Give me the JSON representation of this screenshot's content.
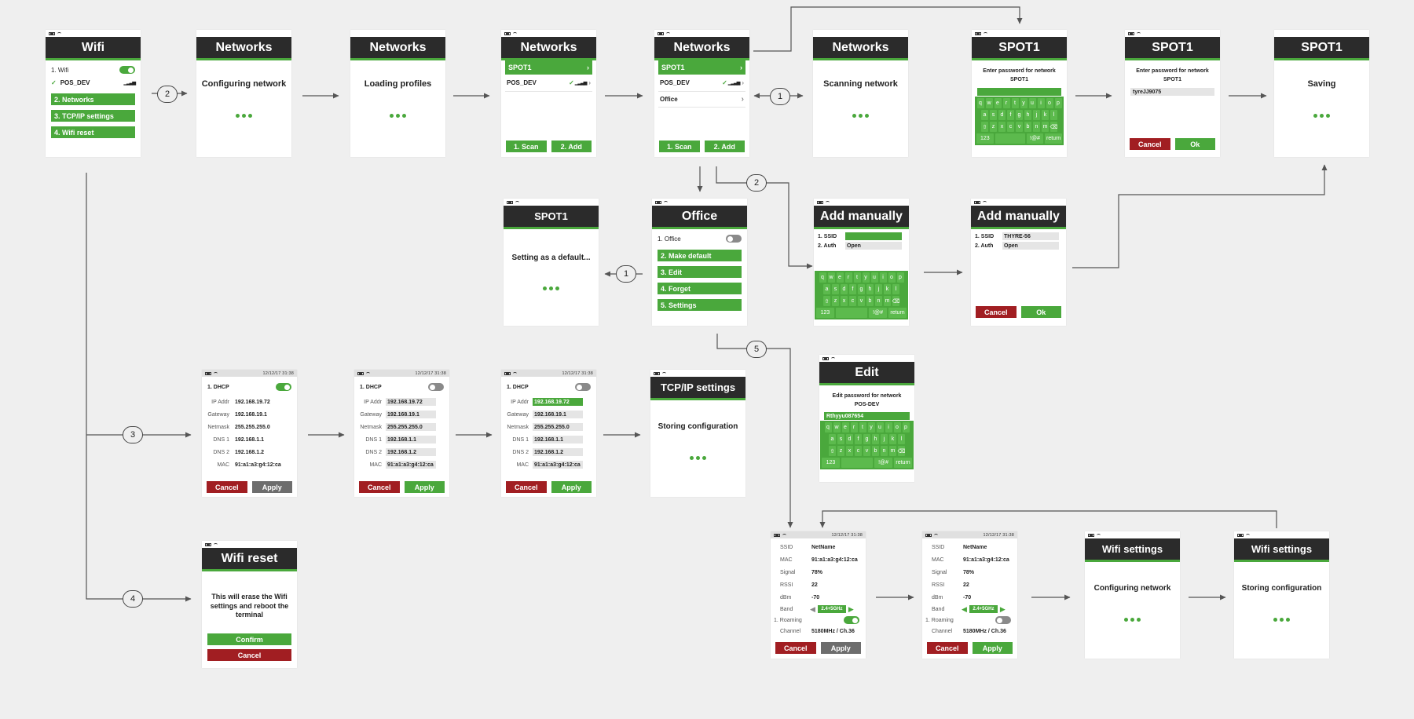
{
  "badges": [
    "2",
    "1",
    "2",
    "1",
    "3",
    "4",
    "5"
  ],
  "wifi": {
    "title": "Wifi",
    "toggle_label": "1. Wifi",
    "network": "POS_DEV",
    "m2": "2. Networks",
    "m3": "3. TCP/IP settings",
    "m4": "4. Wifi reset"
  },
  "configuring": {
    "title": "Networks",
    "text": "Configuring network"
  },
  "loading": {
    "title": "Networks",
    "text": "Loading profiles"
  },
  "networks1": {
    "title": "Networks",
    "n1": "SPOT1",
    "n2": "POS_DEV",
    "scan": "1. Scan",
    "add": "2. Add"
  },
  "networks2": {
    "title": "Networks",
    "n1": "SPOT1",
    "n2": "POS_DEV",
    "n3": "Office",
    "scan": "1. Scan",
    "add": "2. Add"
  },
  "scanning": {
    "title": "Networks",
    "text": "Scanning network"
  },
  "spot_pw": {
    "title": "SPOT1",
    "l1": "Enter password for network",
    "l2": "SPOT1"
  },
  "spot_pw2": {
    "title": "SPOT1",
    "l1": "Enter password for network",
    "l2": "SPOT1",
    "value": "tyreJJ9075",
    "cancel": "Cancel",
    "ok": "Ok"
  },
  "saving": {
    "title": "SPOT1",
    "text": "Saving"
  },
  "spot_default": {
    "title": "SPOT1",
    "text": "Setting as a default..."
  },
  "office": {
    "title": "Office",
    "toggle_label": "1. Office",
    "m2": "2. Make default",
    "m3": "3. Edit",
    "m4": "4. Forget",
    "m5": "5. Settings"
  },
  "addman1": {
    "title": "Add manually",
    "ssid": "1. SSID",
    "auth": "2. Auth",
    "auth_val": "Open"
  },
  "addman2": {
    "title": "Add manually",
    "ssid": "1. SSID",
    "ssid_val": "THYRE-56",
    "auth": "2. Auth",
    "auth_val": "Open",
    "cancel": "Cancel",
    "ok": "Ok"
  },
  "edit": {
    "title": "Edit",
    "l1": "Edit password for network",
    "l2": "POS-DEV",
    "value": "Rthyyu087654"
  },
  "keyboard": {
    "row1": [
      "q",
      "w",
      "e",
      "r",
      "t",
      "y",
      "u",
      "i",
      "o",
      "p"
    ],
    "row2": [
      "a",
      "s",
      "d",
      "f",
      "g",
      "h",
      "j",
      "k",
      "l"
    ],
    "row3": [
      "z",
      "x",
      "c",
      "v",
      "b",
      "n",
      "m"
    ],
    "k123": "123",
    "ksym": "!@#",
    "kret": "return",
    "shift": "⇧",
    "back": "⌫"
  },
  "status": {
    "time": "12/12/17  31:38"
  },
  "dhcp": {
    "toggle_label": "1. DHCP",
    "labels": [
      "IP Addr",
      "Gateway",
      "Netmask",
      "DNS 1",
      "DNS 2",
      "MAC"
    ],
    "values": [
      "192.168.19.72",
      "192.168.19.1",
      "255.255.255.0",
      "192.168.1.1",
      "192.168.1.2",
      "91:a1:a3:g4:12:ca"
    ],
    "cancel": "Cancel",
    "apply": "Apply"
  },
  "tcpip": {
    "title": "TCP/IP settings",
    "text": "Storing configuration"
  },
  "reset": {
    "title": "Wifi reset",
    "text": "This will erase the Wifi settings and reboot the terminal",
    "confirm": "Confirm",
    "cancel": "Cancel"
  },
  "netinfo": {
    "labels": [
      "SSID",
      "MAC",
      "Signal",
      "RSSI",
      "dBm",
      "Band"
    ],
    "values": [
      "NetName",
      "91:a1:a3:g4:12:ca",
      "78%",
      "22",
      "-70"
    ],
    "band": "2.4+5GHz",
    "roaming": "1. Roaming",
    "channel_label": "Channel",
    "channel": "5180MHz / Ch.36",
    "cancel": "Cancel",
    "apply": "Apply"
  },
  "wset1": {
    "title": "Wifi settings",
    "text": "Configuring network"
  },
  "wset2": {
    "title": "Wifi settings",
    "text": "Storing configuration"
  },
  "colors": {
    "green": "#4aa83c",
    "red": "#a11e22",
    "dark": "#2b2b2b",
    "background": "#efefef"
  }
}
